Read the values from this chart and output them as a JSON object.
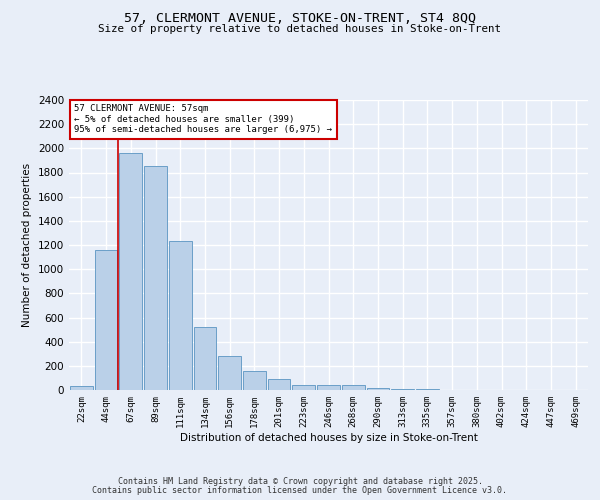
{
  "title_line1": "57, CLERMONT AVENUE, STOKE-ON-TRENT, ST4 8QQ",
  "title_line2": "Size of property relative to detached houses in Stoke-on-Trent",
  "xlabel": "Distribution of detached houses by size in Stoke-on-Trent",
  "ylabel": "Number of detached properties",
  "categories": [
    "22sqm",
    "44sqm",
    "67sqm",
    "89sqm",
    "111sqm",
    "134sqm",
    "156sqm",
    "178sqm",
    "201sqm",
    "223sqm",
    "246sqm",
    "268sqm",
    "290sqm",
    "313sqm",
    "335sqm",
    "357sqm",
    "380sqm",
    "402sqm",
    "424sqm",
    "447sqm",
    "469sqm"
  ],
  "values": [
    30,
    1160,
    1960,
    1850,
    1230,
    520,
    280,
    155,
    90,
    45,
    40,
    40,
    20,
    8,
    5,
    3,
    2,
    2,
    1,
    1,
    1
  ],
  "bar_color": "#bad0e8",
  "bar_edge_color": "#6a9fc8",
  "red_line_x": 1.5,
  "annotation_text": "57 CLERMONT AVENUE: 57sqm\n← 5% of detached houses are smaller (399)\n95% of semi-detached houses are larger (6,975) →",
  "annotation_box_color": "#ffffff",
  "annotation_box_edge": "#cc0000",
  "ylim": [
    0,
    2400
  ],
  "yticks": [
    0,
    200,
    400,
    600,
    800,
    1000,
    1200,
    1400,
    1600,
    1800,
    2000,
    2200,
    2400
  ],
  "background_color": "#e8eef8",
  "grid_color": "#ffffff",
  "footer_line1": "Contains HM Land Registry data © Crown copyright and database right 2025.",
  "footer_line2": "Contains public sector information licensed under the Open Government Licence v3.0."
}
